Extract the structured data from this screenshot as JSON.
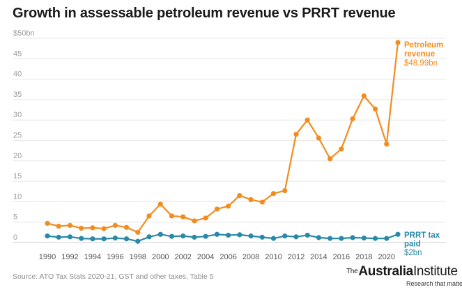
{
  "title": "Growth in assessable petroleum revenue vs PRRT revenue",
  "source": "Source: ATO Tax Stats 2020-21, GST and other taxes, Table 5",
  "logo": {
    "the": "The",
    "name_part1": "Australia",
    "name_part2": "Institute",
    "tagline": "Research that matters."
  },
  "colors": {
    "petroleum": "#f28c1e",
    "prrt": "#2a89a8",
    "grid": "#e6e6e6",
    "axis_text": "#9a9a9a"
  },
  "chart_data": {
    "type": "line",
    "title": "Growth in assessable petroleum revenue vs PRRT revenue",
    "x": [
      1990,
      1991,
      1992,
      1993,
      1994,
      1995,
      1996,
      1997,
      1998,
      1999,
      2000,
      2001,
      2002,
      2003,
      2004,
      2005,
      2006,
      2007,
      2008,
      2009,
      2010,
      2011,
      2012,
      2013,
      2014,
      2015,
      2016,
      2017,
      2018,
      2019,
      2020,
      2021
    ],
    "x_ticks": [
      "1990",
      "1992",
      "1994",
      "1996",
      "1998",
      "2000",
      "2002",
      "2004",
      "2006",
      "2008",
      "2010",
      "2012",
      "2014",
      "2016",
      "2018",
      "2020"
    ],
    "y_ticks": [
      "$50bn",
      "45",
      "40",
      "35",
      "30",
      "25",
      "20",
      "15",
      "10",
      "5",
      "0"
    ],
    "ylim": [
      0,
      50
    ],
    "xlabel": "",
    "ylabel": "",
    "grid": true,
    "series": [
      {
        "name": "Petroleum revenue",
        "label_lines": [
          "Petroleum",
          "revenue",
          "$48.99bn"
        ],
        "color": "#f28c1e",
        "values": [
          4.7,
          4.0,
          4.2,
          3.5,
          3.6,
          3.4,
          4.2,
          3.7,
          2.5,
          6.5,
          9.4,
          6.5,
          6.3,
          5.3,
          6.0,
          8.2,
          8.9,
          11.5,
          10.5,
          9.9,
          12.0,
          12.7,
          26.5,
          30.0,
          25.6,
          20.5,
          22.9,
          30.3,
          35.9,
          32.7,
          24.1,
          48.99
        ]
      },
      {
        "name": "PRRT tax paid",
        "label_lines": [
          "PRRT tax",
          "paid",
          "$2bn"
        ],
        "color": "#2a89a8",
        "values": [
          1.6,
          1.3,
          1.4,
          1.0,
          0.9,
          0.9,
          1.1,
          0.9,
          0.3,
          1.4,
          2.0,
          1.5,
          1.6,
          1.3,
          1.5,
          2.0,
          1.8,
          1.9,
          1.6,
          1.3,
          1.0,
          1.6,
          1.4,
          1.8,
          1.2,
          1.0,
          1.0,
          1.2,
          1.1,
          1.0,
          1.0,
          2.0
        ]
      }
    ]
  }
}
